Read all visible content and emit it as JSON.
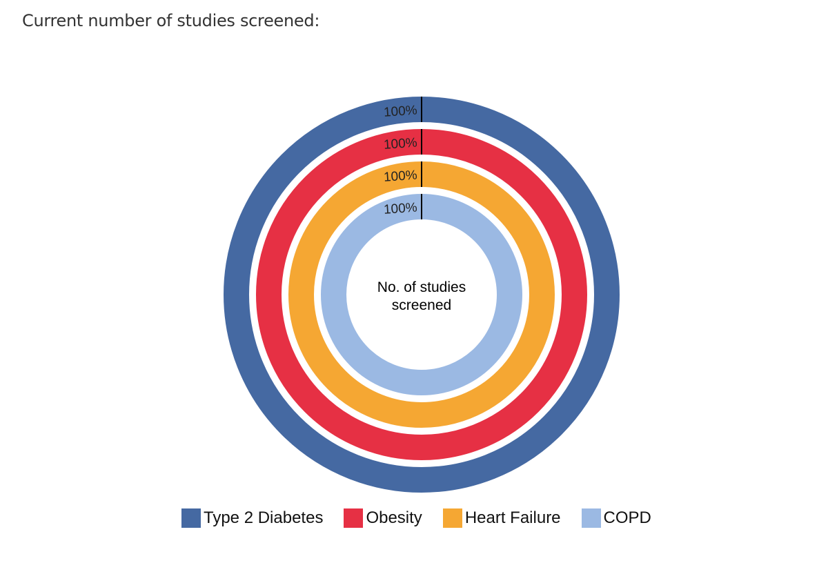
{
  "heading": "Current number of studies screened:",
  "chart_data": {
    "type": "pie",
    "variant": "concentric-rings",
    "center_label_lines": [
      "No. of studies",
      "screened"
    ],
    "series": [
      {
        "name": "Type 2 Diabetes",
        "value": 100,
        "label": "100%",
        "color": "#4569a2"
      },
      {
        "name": "Obesity",
        "value": 100,
        "label": "100%",
        "color": "#e63044"
      },
      {
        "name": "Heart Failure",
        "value": 100,
        "label": "100%",
        "color": "#f5a733"
      },
      {
        "name": "COPD",
        "value": 100,
        "label": "100%",
        "color": "#9bb9e3"
      }
    ],
    "legend_position": "bottom"
  }
}
